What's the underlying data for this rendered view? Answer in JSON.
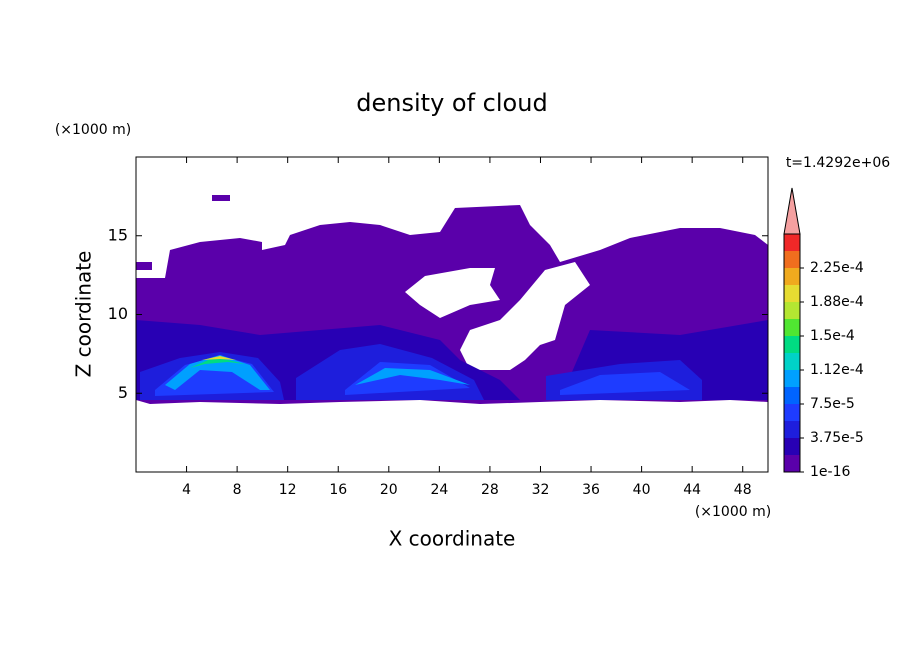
{
  "chart_data": {
    "type": "contour",
    "title": "density of cloud",
    "x_label": "X coordinate",
    "y_label": "Z coordinate",
    "x_unit": "(×1000 m)",
    "y_unit": "(×1000 m)",
    "time_label": "t=1.4292e+06",
    "xlim": [
      0,
      50
    ],
    "xticks": [
      4,
      8,
      12,
      16,
      20,
      24,
      28,
      32,
      36,
      40,
      44,
      48
    ],
    "ylim": [
      0,
      20
    ],
    "yticks": [
      5,
      10,
      15
    ],
    "levels": [
      1e-16,
      {
        "value": 3.75e-05,
        "label": "3.75e-5"
      },
      {
        "value": 7.5e-05,
        "label": "7.5e-5"
      },
      {
        "value": 0.000112,
        "label": "1.12e-4"
      },
      {
        "value": 0.00015,
        "label": "1.5e-4"
      },
      {
        "value": 0.000188,
        "label": "1.88e-4"
      },
      {
        "value": 0.000225,
        "label": "2.25e-4"
      }
    ],
    "colors": [
      "#5a00aa",
      "#2800b4",
      "#1e1edc",
      "#1e3cff",
      "#0064ff",
      "#00a0ff",
      "#00d2c8",
      "#00dc82",
      "#50e632",
      "#b4e632",
      "#e6dc32",
      "#f0aa1e",
      "#f06e1e",
      "#f02828",
      "#f5a0a0"
    ]
  }
}
